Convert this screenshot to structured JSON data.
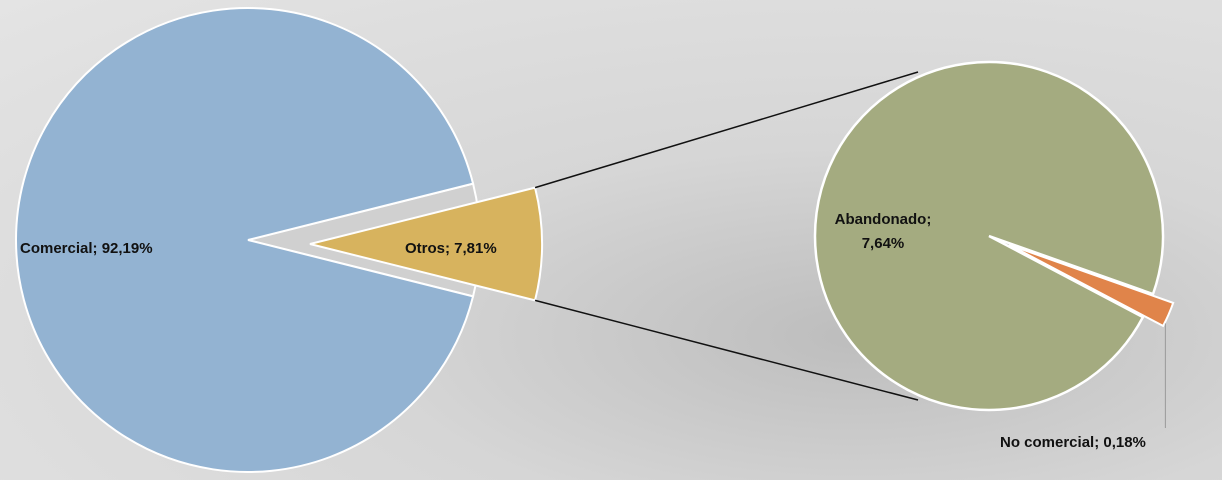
{
  "chart_data": {
    "type": "pie_of_pie",
    "primary": {
      "values": [
        92.19,
        7.81
      ],
      "value_labels": [
        "Comercial; 92,19%",
        "Otros; 7,81%"
      ],
      "colors": [
        "#93b3d2",
        "#d7b35e"
      ]
    },
    "secondary": {
      "values": [
        7.64,
        0.18
      ],
      "value_labels": [
        "Abandonado; 7,64%",
        "No comercial; 0,18%"
      ],
      "colors": [
        "#a4ab80",
        "#e0844a"
      ]
    }
  }
}
